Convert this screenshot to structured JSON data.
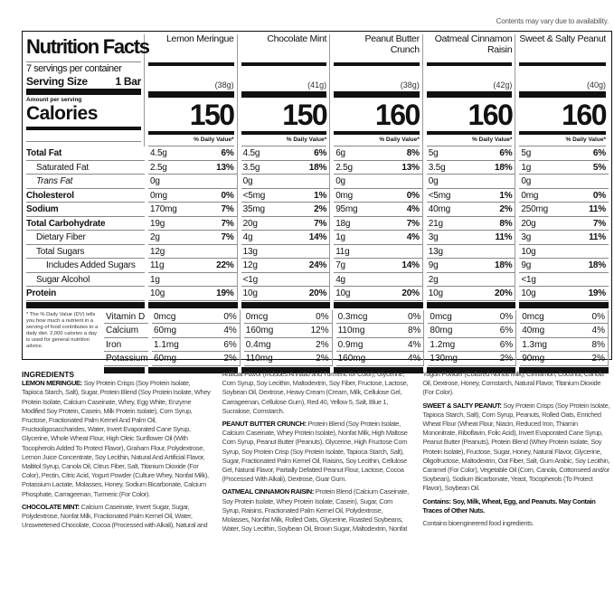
{
  "note": "Contents may vary due to availability.",
  "label": {
    "title": "Nutrition Facts",
    "servings": "7 servings per container",
    "serving_size_label": "Serving Size",
    "serving_size_value": "1 Bar",
    "amount_per_serving": "Amount per serving",
    "calories_label": "Calories",
    "dv_header": "% Daily Value*",
    "products": [
      {
        "name": "Lemon Meringue",
        "weight": "(38g)",
        "calories": "150"
      },
      {
        "name": "Chocolate Mint",
        "weight": "(41g)",
        "calories": "150"
      },
      {
        "name": "Peanut Butter Crunch",
        "weight": "(38g)",
        "calories": "160"
      },
      {
        "name": "Oatmeal Cinnamon Raisin",
        "weight": "(42g)",
        "calories": "160"
      },
      {
        "name": "Sweet & Salty Peanut",
        "weight": "(40g)",
        "calories": "160"
      }
    ],
    "nutrients": [
      {
        "label": "Total Fat",
        "style": "b",
        "values": [
          [
            "4.5g",
            "6%"
          ],
          [
            "4.5g",
            "6%"
          ],
          [
            "6g",
            "8%"
          ],
          [
            "5g",
            "6%"
          ],
          [
            "5g",
            "6%"
          ]
        ]
      },
      {
        "label": "Saturated Fat",
        "style": "i1",
        "values": [
          [
            "2.5g",
            "13%"
          ],
          [
            "3.5g",
            "18%"
          ],
          [
            "2.5g",
            "13%"
          ],
          [
            "3.5g",
            "18%"
          ],
          [
            "1g",
            "5%"
          ]
        ]
      },
      {
        "label": "Trans Fat",
        "style": "i1",
        "values": [
          [
            "0g",
            ""
          ],
          [
            "0g",
            ""
          ],
          [
            "0g",
            ""
          ],
          [
            "0g",
            ""
          ],
          [
            "0g",
            ""
          ]
        ]
      },
      {
        "label": "Cholesterol",
        "style": "b",
        "values": [
          [
            "0mg",
            "0%"
          ],
          [
            "<5mg",
            "1%"
          ],
          [
            "0mg",
            "0%"
          ],
          [
            "<5mg",
            "1%"
          ],
          [
            "0mg",
            "0%"
          ]
        ]
      },
      {
        "label": "Sodium",
        "style": "b",
        "values": [
          [
            "170mg",
            "7%"
          ],
          [
            "35mg",
            "2%"
          ],
          [
            "95mg",
            "4%"
          ],
          [
            "40mg",
            "2%"
          ],
          [
            "250mg",
            "11%"
          ]
        ]
      },
      {
        "label": "Total Carbohydrate",
        "style": "b",
        "values": [
          [
            "19g",
            "7%"
          ],
          [
            "20g",
            "7%"
          ],
          [
            "18g",
            "7%"
          ],
          [
            "21g",
            "8%"
          ],
          [
            "20g",
            "7%"
          ]
        ]
      },
      {
        "label": "Dietary Fiber",
        "style": "i1",
        "values": [
          [
            "2g",
            "7%"
          ],
          [
            "4g",
            "14%"
          ],
          [
            "1g",
            "4%"
          ],
          [
            "3g",
            "11%"
          ],
          [
            "3g",
            "11%"
          ]
        ]
      },
      {
        "label": "Total Sugars",
        "style": "i1",
        "values": [
          [
            "12g",
            ""
          ],
          [
            "13g",
            ""
          ],
          [
            "11g",
            ""
          ],
          [
            "13g",
            ""
          ],
          [
            "10g",
            ""
          ]
        ]
      },
      {
        "label": "Includes Added Sugars",
        "style": "i2",
        "values": [
          [
            "11g",
            "22%"
          ],
          [
            "12g",
            "24%"
          ],
          [
            "7g",
            "14%"
          ],
          [
            "9g",
            "18%"
          ],
          [
            "9g",
            "18%"
          ]
        ]
      },
      {
        "label": "Sugar Alcohol",
        "style": "i1",
        "values": [
          [
            "1g",
            ""
          ],
          [
            "<1g",
            ""
          ],
          [
            "4g",
            ""
          ],
          [
            "2g",
            ""
          ],
          [
            "<1g",
            ""
          ]
        ]
      },
      {
        "label": "Protein",
        "style": "b",
        "values": [
          [
            "10g",
            "19%"
          ],
          [
            "10g",
            "20%"
          ],
          [
            "10g",
            "20%"
          ],
          [
            "10g",
            "20%"
          ],
          [
            "10g",
            "19%"
          ]
        ]
      }
    ],
    "footnote": "* The % Daily Value (DV) tells you how much a nutrient in a serving of food contributes to a daily diet. 2,000 calories a day is used for general nutrition advice.",
    "vitamins": [
      {
        "label": "Vitamin D",
        "values": [
          [
            "0mcg",
            "0%"
          ],
          [
            "0mcg",
            "0%"
          ],
          [
            "0.3mcg",
            "0%"
          ],
          [
            "0mcg",
            "0%"
          ],
          [
            "0mcg",
            "0%"
          ]
        ]
      },
      {
        "label": "Calcium",
        "values": [
          [
            "60mg",
            "4%"
          ],
          [
            "160mg",
            "12%"
          ],
          [
            "110mg",
            "8%"
          ],
          [
            "80mg",
            "6%"
          ],
          [
            "40mg",
            "4%"
          ]
        ]
      },
      {
        "label": "Iron",
        "values": [
          [
            "1.1mg",
            "6%"
          ],
          [
            "0.4mg",
            "2%"
          ],
          [
            "0.9mg",
            "4%"
          ],
          [
            "1.2mg",
            "6%"
          ],
          [
            "1.3mg",
            "8%"
          ]
        ]
      },
      {
        "label": "Potassium",
        "values": [
          [
            "60mg",
            "2%"
          ],
          [
            "110mg",
            "2%"
          ],
          [
            "160mg",
            "4%"
          ],
          [
            "130mg",
            "2%"
          ],
          [
            "90mg",
            "2%"
          ]
        ]
      }
    ]
  },
  "ingredients": {
    "heading": "INGREDIENTS",
    "items": [
      {
        "name": "LEMON MERINGUE:",
        "text": " Soy Protein Crisps (Soy Protein Isolate, Tapioca Starch, Salt), Sugar, Protein Blend (Soy Protein Isolate, Whey Protein Isolate, Calcium Caseinate, Whey, Egg White, Enzyme Modified Soy Protein, Casein, Milk Protein Isolate), Corn Syrup, Fructose, Fractionated Palm Kernel And Palm Oil, Fructooligosaccharides, Water, Invert Evaporated Cane Syrup, Glycerine, Whole Wheat Flour, High Oleic Sunflower Oil (With Tocopherols Added To Protect Flavor), Graham Flour, Polydextrose, Lemon Juice Concentrate, Soy Lecithin, Natural And Artificial Flavor, Maltitol Syrup, Canola Oil, Citrus Fiber, Salt, Titanium Dioxide (For Color), Pectin, Citric Acid, Yogurt Powder (Culture Whey, Nonfat Milk), Potassium Lactate, Molasses, Honey, Sodium Bicarbonate, Calcium Phosphate, Carrageenan, Turmeric (For Color)."
      },
      {
        "name": "CHOCOLATE MINT:",
        "text": " Calcium Caseinate, Invert Sugar, Sugar, Polydextrose, Nonfat Milk, Fractionated Palm Kernel Oil, Water, Unsweetened Chocolate, Cocoa (Processed with Alkali), Natural and Artificial Flavor (Includes Annatto and Turmeric for Color), Glycerine, Corn Syrup, Soy Lecithin, Maltodextrin, Soy Fiber, Fructose, Lactose, Soybean Oil, Dextrose, Heavy Cream (Cream, Milk, Cellulose Gel, Carrageenan, Cellulose Gum), Red 40, Yellow 5, Salt, Blue 1, Sucralose, Cornstarch."
      },
      {
        "name": "PEANUT BUTTER CRUNCH:",
        "text": " Protein Blend (Soy Protein Isolate, Calcium Caseinate, Whey Protein Isolate), Nonfat Milk, High Maltose Corn Syrup, Peanut Butter (Peanuts), Glycerine, High Fructose Corn Syrup, Soy Protein Crisp (Soy Protein Isolate, Tapioca Starch, Salt), Sugar, Fractionated Palm Kernel Oil, Raisins, Soy Lecithin, Cellulose Gel, Natural Flavor, Partially Defatted Peanut Flour, Lactose, Cocoa (Processed With Alkali), Dextrose, Guar Gum."
      },
      {
        "name": "OATMEAL CINNAMON RAISIN:",
        "text": " Protein Blend (Calcium Caseinate, Soy Protein Isolate, Whey Protein Isolate, Casein), Sugar, Corn Syrup, Raisins, Fractionated Palm Kernel Oil, Polydextrose, Molasses, Nonfat Milk, Rolled Oats, Glycerine, Roasted Soybeans, Water, Soy Lecithin, Soybean Oil, Brown Sugar, Maltodextrin, Nonfat Yogurt Powder (Cultured Nonfat Milk), Cinnamon, Coconut, Canola Oil, Dextrose, Honey, Cornstarch, Natural Flavor, Titanium Dioxide (For Color)."
      },
      {
        "name": "SWEET & SALTY PEANUT:",
        "text": " Soy Protein Crisps (Soy Protein Isolate, Tapioca Starch, Salt), Corn Syrup, Peanuts, Rolled Oats, Enriched Wheat Flour (Wheat Flour, Niacin, Reduced Iron, Thiamin Mononitrate, Riboflavin, Folic Acid), Invert Evaporated Cane Syrup, Peanut Butter (Peanuts), Protein Blend (Whey Protein Isolate, Soy Protein Isolate), Fructose, Sugar, Honey, Natural Flavor, Glycerine, Oligofructose, Maltodextrin, Oat Fiber, Salt, Gum Arabic, Soy Lecithin, Caramel (For Color), Vegetable Oil (Corn, Canola, Cottonseed and/or Soybean), Sodium Bicarbonate, Yeast, Tocopherols (To Protect Flavor), Soybean Oil."
      }
    ],
    "allergens": "Contains: Soy, Milk, Wheat, Egg, and Peanuts. May Contain Traces of Other Nuts.",
    "bioengineered": "Contains bioengineered food ingredients."
  }
}
